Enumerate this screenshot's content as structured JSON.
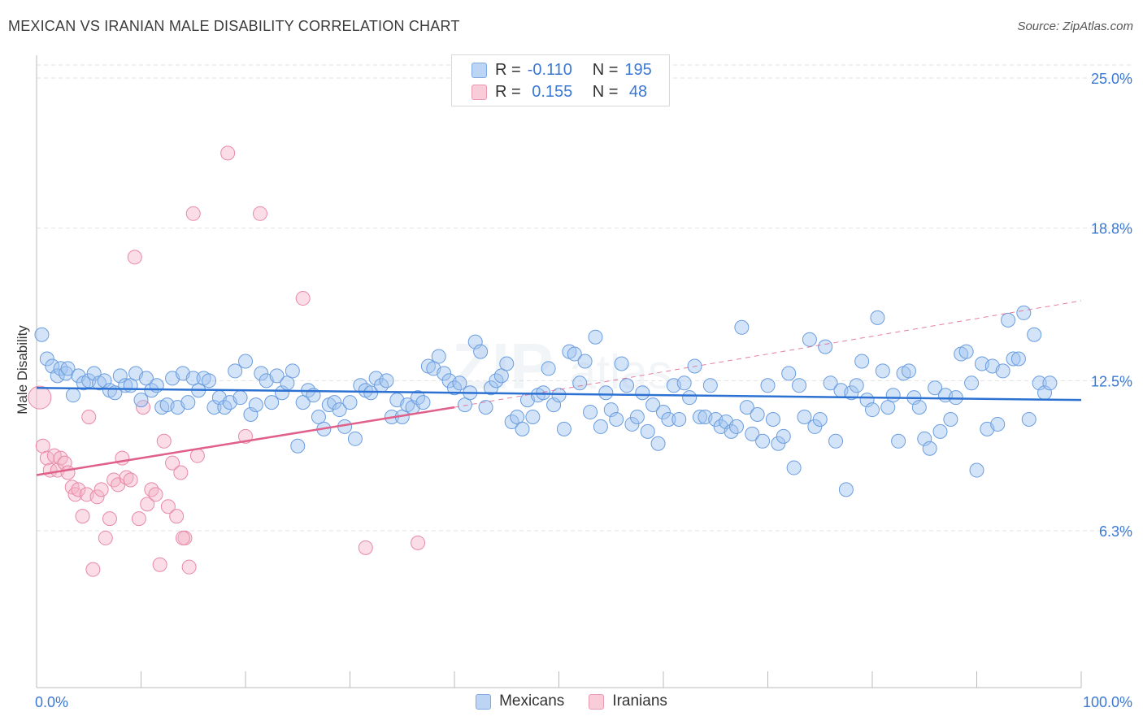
{
  "header": {
    "title": "MEXICAN VS IRANIAN MALE DISABILITY CORRELATION CHART",
    "source": "Source: ZipAtlas.com"
  },
  "legend": {
    "rows": [
      {
        "r_label": "R =",
        "r_value": "-0.110",
        "n_label": "N =",
        "n_value": "195",
        "color": "#a9c8f0"
      },
      {
        "r_label": "R =",
        "r_value": " 0.155",
        "n_label": "N =",
        "n_value": " 48",
        "color": "#f5b8c8"
      }
    ]
  },
  "bottom_legend": [
    "Mexicans",
    "Iranians"
  ],
  "colors": {
    "mexicans_fill": "rgba(160,195,240,0.45)",
    "mexicans_stroke": "#6a9ddf",
    "mexicans_line": "#2d72d2",
    "iranians_fill": "rgba(245,180,200,0.45)",
    "iranians_stroke": "#e889a8",
    "iranians_line": "#e0608a",
    "tick_label": "#3a78d4",
    "grid": "#e2e2e2"
  },
  "chart_data": {
    "type": "scatter",
    "title": "MEXICAN VS IRANIAN MALE DISABILITY CORRELATION CHART",
    "ylabel": "Male Disability",
    "xlabel": "",
    "xlim": [
      0,
      100
    ],
    "ylim": [
      0,
      26.5
    ],
    "x_tick_labels": [
      "0.0%",
      "100.0%"
    ],
    "y_ticks": [
      6.3,
      12.5,
      18.8,
      25.0
    ],
    "y_tick_labels": [
      "6.3%",
      "12.5%",
      "18.8%",
      "25.0%"
    ],
    "series": [
      {
        "name": "Mexicans",
        "trend": {
          "x0": 0,
          "y0": 12.2,
          "x1": 100,
          "y1": 11.7,
          "style": "solid"
        },
        "points": [
          [
            0.5,
            14.4
          ],
          [
            1,
            13.4
          ],
          [
            1.5,
            13.1
          ],
          [
            2,
            12.7
          ],
          [
            2.3,
            13.0
          ],
          [
            2.8,
            12.8
          ],
          [
            3,
            13.0
          ],
          [
            3.5,
            11.9
          ],
          [
            4,
            12.7
          ],
          [
            4.5,
            12.4
          ],
          [
            5,
            12.5
          ],
          [
            5.5,
            12.8
          ],
          [
            6,
            12.4
          ],
          [
            6.5,
            12.5
          ],
          [
            7,
            12.1
          ],
          [
            7.5,
            12.0
          ],
          [
            8,
            12.7
          ],
          [
            8.5,
            12.3
          ],
          [
            9,
            12.3
          ],
          [
            9.5,
            12.8
          ],
          [
            10,
            11.7
          ],
          [
            10.5,
            12.6
          ],
          [
            11,
            12.1
          ],
          [
            11.5,
            12.3
          ],
          [
            12,
            11.4
          ],
          [
            12.5,
            11.5
          ],
          [
            13,
            12.6
          ],
          [
            13.5,
            11.4
          ],
          [
            14,
            12.8
          ],
          [
            14.5,
            11.6
          ],
          [
            15,
            12.6
          ],
          [
            15.5,
            12.1
          ],
          [
            16,
            12.6
          ],
          [
            16.5,
            12.5
          ],
          [
            17,
            11.4
          ],
          [
            17.5,
            11.8
          ],
          [
            18,
            11.4
          ],
          [
            18.5,
            11.6
          ],
          [
            19,
            12.9
          ],
          [
            19.5,
            11.8
          ],
          [
            20,
            13.3
          ],
          [
            20.5,
            11.1
          ],
          [
            21,
            11.5
          ],
          [
            21.5,
            12.8
          ],
          [
            22,
            12.5
          ],
          [
            22.5,
            11.6
          ],
          [
            23,
            12.7
          ],
          [
            23.5,
            12.0
          ],
          [
            24,
            12.4
          ],
          [
            24.5,
            12.9
          ],
          [
            25,
            9.8
          ],
          [
            25.5,
            11.6
          ],
          [
            26,
            12.1
          ],
          [
            26.5,
            11.9
          ],
          [
            27,
            11.0
          ],
          [
            27.5,
            10.5
          ],
          [
            28,
            11.5
          ],
          [
            28.5,
            11.6
          ],
          [
            29,
            11.3
          ],
          [
            29.5,
            10.6
          ],
          [
            30,
            11.6
          ],
          [
            30.5,
            10.1
          ],
          [
            31,
            12.3
          ],
          [
            31.5,
            12.1
          ],
          [
            32,
            12.0
          ],
          [
            32.5,
            12.6
          ],
          [
            33,
            12.3
          ],
          [
            33.5,
            12.5
          ],
          [
            34,
            11.0
          ],
          [
            34.5,
            11.7
          ],
          [
            35,
            11.0
          ],
          [
            35.5,
            11.5
          ],
          [
            36,
            11.4
          ],
          [
            36.5,
            11.8
          ],
          [
            37,
            11.6
          ],
          [
            37.5,
            13.1
          ],
          [
            38,
            13.0
          ],
          [
            38.5,
            13.5
          ],
          [
            39,
            12.8
          ],
          [
            39.5,
            12.5
          ],
          [
            40,
            12.2
          ],
          [
            40.5,
            12.4
          ],
          [
            41,
            11.5
          ],
          [
            41.5,
            12.0
          ],
          [
            42,
            14.1
          ],
          [
            42.5,
            13.7
          ],
          [
            43,
            11.4
          ],
          [
            43.5,
            12.2
          ],
          [
            44,
            12.5
          ],
          [
            44.5,
            12.7
          ],
          [
            45,
            13.2
          ],
          [
            45.5,
            10.8
          ],
          [
            46,
            11.0
          ],
          [
            46.5,
            10.5
          ],
          [
            47,
            11.7
          ],
          [
            47.5,
            11.0
          ],
          [
            48,
            11.9
          ],
          [
            48.5,
            12.0
          ],
          [
            49,
            13.0
          ],
          [
            49.5,
            11.5
          ],
          [
            50,
            11.9
          ],
          [
            50.5,
            10.5
          ],
          [
            51,
            13.7
          ],
          [
            51.5,
            13.6
          ],
          [
            52,
            12.4
          ],
          [
            52.5,
            13.3
          ],
          [
            53,
            11.2
          ],
          [
            53.5,
            14.3
          ],
          [
            54,
            10.6
          ],
          [
            54.5,
            12.0
          ],
          [
            55,
            11.3
          ],
          [
            55.5,
            10.9
          ],
          [
            56,
            13.2
          ],
          [
            56.5,
            12.3
          ],
          [
            57,
            10.7
          ],
          [
            57.5,
            11.0
          ],
          [
            58,
            12.0
          ],
          [
            58.5,
            10.4
          ],
          [
            59,
            11.5
          ],
          [
            59.5,
            9.9
          ],
          [
            60,
            11.2
          ],
          [
            60.5,
            10.9
          ],
          [
            61,
            12.3
          ],
          [
            61.5,
            10.9
          ],
          [
            62,
            12.4
          ],
          [
            62.5,
            11.8
          ],
          [
            63,
            13.1
          ],
          [
            63.5,
            11.0
          ],
          [
            64,
            11.0
          ],
          [
            64.5,
            12.3
          ],
          [
            65,
            10.9
          ],
          [
            65.5,
            10.6
          ],
          [
            66,
            10.8
          ],
          [
            66.5,
            10.4
          ],
          [
            67,
            10.6
          ],
          [
            67.5,
            14.7
          ],
          [
            68,
            11.4
          ],
          [
            68.5,
            10.3
          ],
          [
            69,
            11.1
          ],
          [
            69.5,
            10.0
          ],
          [
            70,
            12.3
          ],
          [
            70.5,
            10.9
          ],
          [
            71,
            9.9
          ],
          [
            71.5,
            10.2
          ],
          [
            72,
            12.8
          ],
          [
            72.5,
            8.9
          ],
          [
            73,
            12.3
          ],
          [
            73.5,
            11.0
          ],
          [
            74,
            14.2
          ],
          [
            74.5,
            10.6
          ],
          [
            75,
            10.9
          ],
          [
            75.5,
            13.9
          ],
          [
            76,
            12.4
          ],
          [
            76.5,
            10.0
          ],
          [
            77,
            12.1
          ],
          [
            77.5,
            8.0
          ],
          [
            78,
            12.0
          ],
          [
            78.5,
            12.3
          ],
          [
            79,
            13.3
          ],
          [
            79.5,
            11.7
          ],
          [
            80,
            11.3
          ],
          [
            80.5,
            15.1
          ],
          [
            81,
            12.9
          ],
          [
            81.5,
            11.4
          ],
          [
            82,
            11.9
          ],
          [
            82.5,
            10.0
          ],
          [
            83,
            12.8
          ],
          [
            83.5,
            12.9
          ],
          [
            84,
            11.8
          ],
          [
            84.5,
            11.4
          ],
          [
            85,
            10.1
          ],
          [
            85.5,
            9.7
          ],
          [
            86,
            12.2
          ],
          [
            86.5,
            10.4
          ],
          [
            87,
            11.9
          ],
          [
            87.5,
            10.9
          ],
          [
            88,
            11.8
          ],
          [
            88.5,
            13.6
          ],
          [
            89,
            13.7
          ],
          [
            89.5,
            12.4
          ],
          [
            90,
            8.8
          ],
          [
            90.5,
            13.2
          ],
          [
            91,
            10.5
          ],
          [
            91.5,
            13.1
          ],
          [
            92,
            10.7
          ],
          [
            92.5,
            12.9
          ],
          [
            93,
            15.0
          ],
          [
            93.5,
            13.4
          ],
          [
            94,
            13.4
          ],
          [
            94.5,
            15.3
          ],
          [
            95,
            10.9
          ],
          [
            95.5,
            14.4
          ],
          [
            96,
            12.4
          ],
          [
            96.5,
            12.0
          ],
          [
            97,
            12.4
          ]
        ]
      },
      {
        "name": "Iranians",
        "trend": {
          "x0": 0,
          "y0": 8.6,
          "x1": 40,
          "y1": 11.4,
          "style": "solid",
          "extension_to": {
            "x": 100,
            "y": 15.8,
            "style": "dashed"
          }
        },
        "points": [
          [
            0.3,
            11.8
          ],
          [
            0.6,
            9.8
          ],
          [
            1,
            9.3
          ],
          [
            1.3,
            8.8
          ],
          [
            1.7,
            9.4
          ],
          [
            2,
            8.8
          ],
          [
            2.3,
            9.3
          ],
          [
            2.7,
            9.1
          ],
          [
            3,
            8.7
          ],
          [
            3.4,
            8.1
          ],
          [
            3.7,
            7.8
          ],
          [
            4,
            8.0
          ],
          [
            4.4,
            6.9
          ],
          [
            4.8,
            7.8
          ],
          [
            5,
            11.0
          ],
          [
            5.4,
            4.7
          ],
          [
            5.8,
            7.7
          ],
          [
            6.2,
            8.0
          ],
          [
            6.6,
            6.0
          ],
          [
            7,
            6.8
          ],
          [
            7.4,
            8.4
          ],
          [
            7.8,
            8.2
          ],
          [
            8.2,
            9.3
          ],
          [
            8.6,
            8.5
          ],
          [
            9,
            8.4
          ],
          [
            9.4,
            17.6
          ],
          [
            9.8,
            6.8
          ],
          [
            10.2,
            11.4
          ],
          [
            10.6,
            7.4
          ],
          [
            11,
            8.0
          ],
          [
            11.4,
            7.8
          ],
          [
            11.8,
            4.9
          ],
          [
            12.2,
            10.0
          ],
          [
            12.6,
            7.3
          ],
          [
            13,
            9.1
          ],
          [
            13.4,
            6.9
          ],
          [
            13.8,
            8.7
          ],
          [
            14.2,
            6.0
          ],
          [
            14.6,
            4.8
          ],
          [
            15,
            19.4
          ],
          [
            15.4,
            9.4
          ],
          [
            18.3,
            21.9
          ],
          [
            20,
            10.2
          ],
          [
            21.4,
            19.4
          ],
          [
            25.5,
            15.9
          ],
          [
            31.5,
            5.6
          ],
          [
            36.5,
            5.8
          ],
          [
            14,
            6.0
          ]
        ]
      }
    ]
  }
}
